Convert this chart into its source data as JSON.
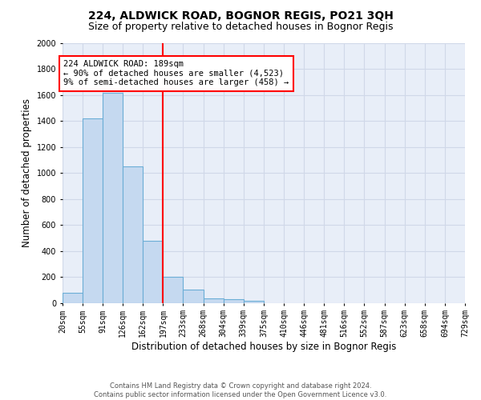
{
  "title": "224, ALDWICK ROAD, BOGNOR REGIS, PO21 3QH",
  "subtitle": "Size of property relative to detached houses in Bognor Regis",
  "xlabel": "Distribution of detached houses by size in Bognor Regis",
  "ylabel": "Number of detached properties",
  "footer_line1": "Contains HM Land Registry data © Crown copyright and database right 2024.",
  "footer_line2": "Contains public sector information licensed under the Open Government Licence v3.0.",
  "tick_labels": [
    "20sqm",
    "55sqm",
    "91sqm",
    "126sqm",
    "162sqm",
    "197sqm",
    "233sqm",
    "268sqm",
    "304sqm",
    "339sqm",
    "375sqm",
    "410sqm",
    "446sqm",
    "481sqm",
    "516sqm",
    "552sqm",
    "587sqm",
    "623sqm",
    "658sqm",
    "694sqm",
    "729sqm"
  ],
  "bar_lefts": [
    0,
    1,
    2,
    3,
    4,
    5,
    6,
    7,
    8,
    9
  ],
  "bar_heights": [
    80,
    1420,
    1620,
    1050,
    480,
    200,
    105,
    35,
    25,
    15
  ],
  "bar_color": "#c5d9f0",
  "bar_edge_color": "#6baed6",
  "red_line_x": 5.0,
  "annotation_text": "224 ALDWICK ROAD: 189sqm\n← 90% of detached houses are smaller (4,523)\n9% of semi-detached houses are larger (458) →",
  "annotation_box_color": "white",
  "annotation_box_edge_color": "red",
  "ylim": [
    0,
    2000
  ],
  "yticks": [
    0,
    200,
    400,
    600,
    800,
    1000,
    1200,
    1400,
    1600,
    1800,
    2000
  ],
  "background_color": "#e8eef8",
  "grid_color": "#d0d8e8",
  "title_fontsize": 10,
  "subtitle_fontsize": 9,
  "xlabel_fontsize": 8.5,
  "ylabel_fontsize": 8.5,
  "tick_fontsize": 7,
  "annotation_fontsize": 7.5
}
